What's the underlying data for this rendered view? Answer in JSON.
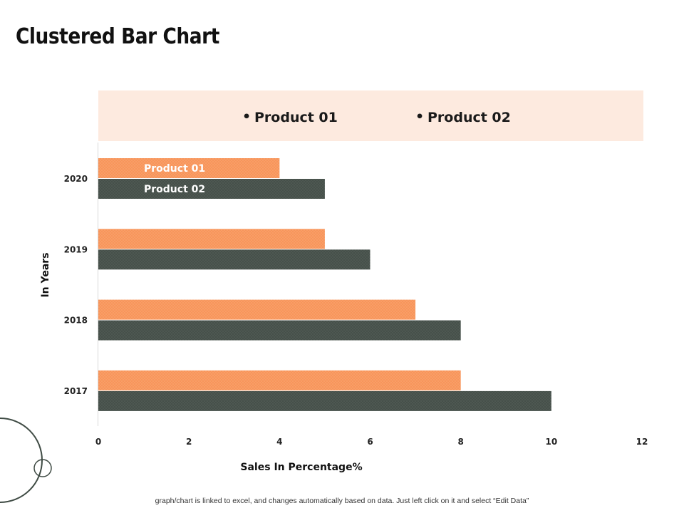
{
  "slide": {
    "title": "Clustered Bar Chart",
    "footnote": "graph/chart is linked to excel,  and changes automatically based on data. Just left click on it and select “Edit Data”"
  },
  "colors": {
    "product01": "#F8955A",
    "product02": "#46504A",
    "legend_background": "#FDEADF",
    "axis_line": "#D9D9D9",
    "decor_circle": "#3F4B44"
  },
  "chart_data": {
    "type": "bar",
    "orientation": "horizontal",
    "categories": [
      "2020",
      "2019",
      "2018",
      "2017"
    ],
    "series": [
      {
        "name": "Product 01",
        "values": [
          4,
          5,
          7,
          8
        ]
      },
      {
        "name": "Product 02",
        "values": [
          5,
          6,
          8,
          10
        ]
      }
    ],
    "xlabel": "Sales In Percentage%",
    "ylabel": "In Years",
    "xlim": [
      0,
      12
    ],
    "xticks": [
      0,
      2,
      4,
      6,
      8,
      10,
      12
    ],
    "legend": {
      "position": "top",
      "bullet": "•",
      "items": [
        "Product 01",
        "Product 02"
      ]
    },
    "bar_labels": {
      "category": "2020",
      "labels": [
        "Product 01",
        "Product 02"
      ]
    },
    "grid": false
  }
}
